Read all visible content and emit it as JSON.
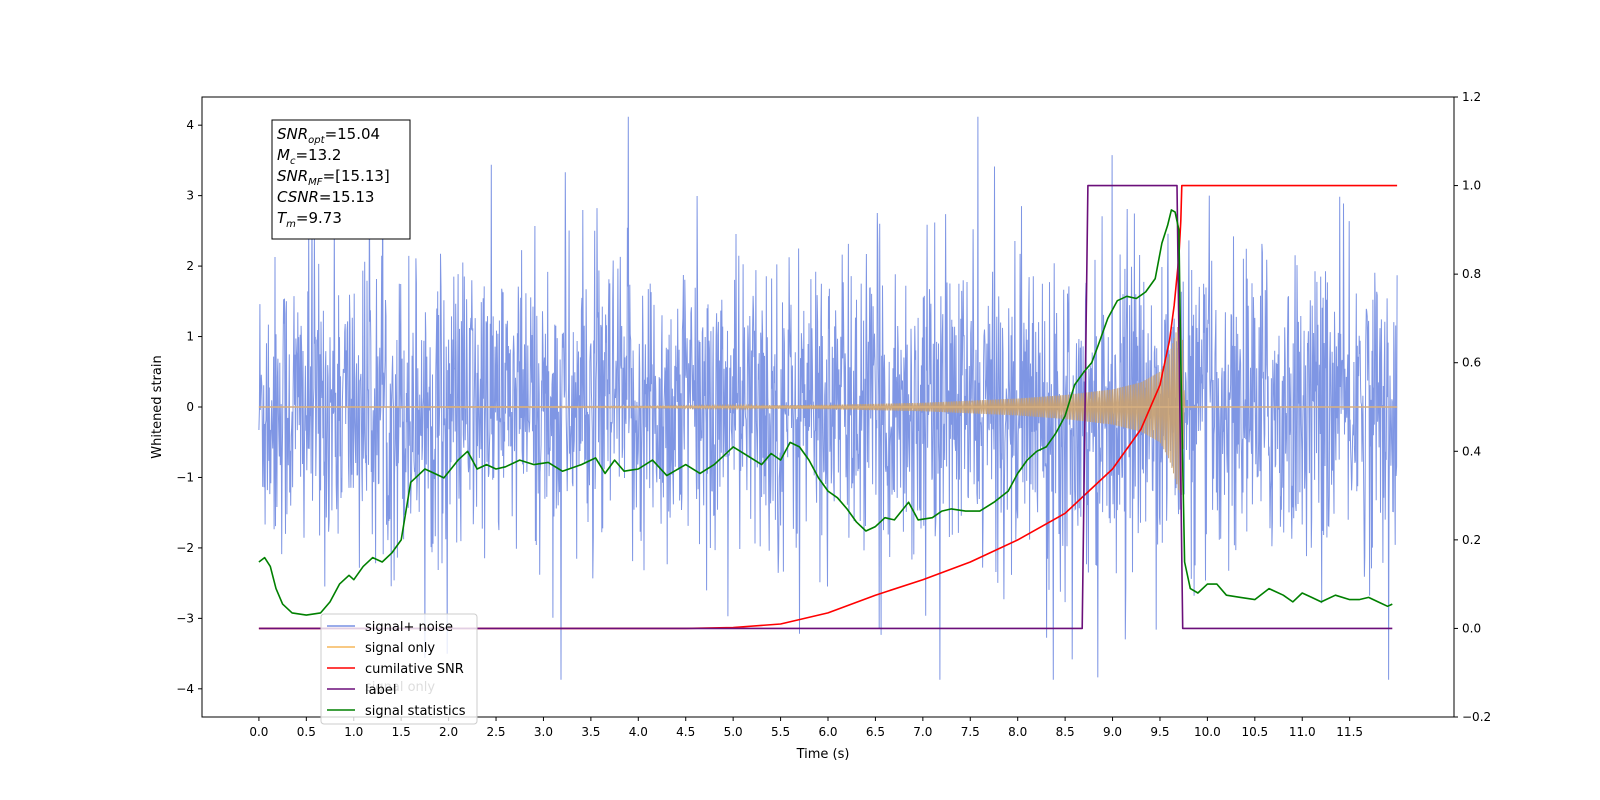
{
  "chart_data": {
    "type": "line",
    "xlabel": "Time (s)",
    "ylabel_left": "Whitened strain",
    "ylabel_right": "",
    "x_range": [
      -0.6,
      12.6
    ],
    "ylim_left": [
      -4.4,
      4.4
    ],
    "ylim_right": [
      -0.2,
      1.2
    ],
    "x_ticks": [
      0.0,
      0.5,
      1.0,
      1.5,
      2.0,
      2.5,
      3.0,
      3.5,
      4.0,
      4.5,
      5.0,
      5.5,
      6.0,
      6.5,
      7.0,
      7.5,
      8.0,
      8.5,
      9.0,
      9.5,
      10.0,
      10.5,
      11.0,
      11.5
    ],
    "x_tick_labels": [
      "0.0",
      "0.5",
      "1.0",
      "1.5",
      "2.0",
      "2.5",
      "3.0",
      "3.5",
      "4.0",
      "4.5",
      "5.0",
      "5.5",
      "6.0",
      "6.5",
      "7.0",
      "7.5",
      "8.0",
      "8.5",
      "9.0",
      "9.5",
      "10.0",
      "10.5",
      "11.0",
      "11.5"
    ],
    "y_ticks_left": [
      -4,
      -3,
      -2,
      -1,
      0,
      1,
      2,
      3,
      4
    ],
    "y_ticks_right": [
      -0.2,
      0.0,
      0.2,
      0.4,
      0.6,
      0.8,
      1.0,
      1.2
    ],
    "y_tick_labels_right": [
      "−0.2",
      "0.0",
      "0.2",
      "0.4",
      "0.6",
      "0.8",
      "1.0",
      "1.2"
    ],
    "annotation": {
      "lines": [
        {
          "sym": "SNR",
          "sub": "opt",
          "val": "=15.04"
        },
        {
          "sym": "M",
          "sub": "c",
          "val": "=13.2"
        },
        {
          "sym": "SNR",
          "sub": "MF",
          "val": "=[15.13]"
        },
        {
          "sym": "CSNR",
          "sub": "",
          "val": "=15.13"
        },
        {
          "sym": "T",
          "sub": "m",
          "val": "=9.73"
        }
      ]
    },
    "legend": {
      "placement": "lower-left",
      "entries": [
        {
          "label": "signal+ noise",
          "color": "#7890e3"
        },
        {
          "label": "signal only",
          "color": "#f5b75a"
        },
        {
          "label": "cumilative SNR",
          "color": "#ff0000"
        },
        {
          "label": "label",
          "color": "#6b0f7a"
        },
        {
          "label": "signal statistics",
          "color": "#008000"
        }
      ],
      "hidden_text": "signal only"
    },
    "series": [
      {
        "name": "signal+ noise",
        "axis": "left",
        "color": "#7890e3",
        "description_values": {
          "t_start": 0.0,
          "t_end": 12.0,
          "typical_range": [
            -2.6,
            2.6
          ],
          "max": 4.12,
          "min": -3.87
        }
      },
      {
        "name": "signal only",
        "axis": "left",
        "color": "#f5b75a",
        "merger_time": 9.73,
        "envelope": {
          "t": [
            0.0,
            4.0,
            6.0,
            7.0,
            8.0,
            8.5,
            9.0,
            9.3,
            9.5,
            9.6,
            9.7,
            9.73,
            9.76,
            12.0
          ],
          "amp": [
            0.0,
            0.01,
            0.03,
            0.06,
            0.12,
            0.17,
            0.25,
            0.35,
            0.5,
            0.75,
            1.2,
            1.25,
            0.0,
            0.0
          ]
        }
      },
      {
        "name": "cumilative SNR",
        "axis": "right",
        "color": "#ff0000",
        "t": [
          0.0,
          4.5,
          5.0,
          5.5,
          6.0,
          6.5,
          7.0,
          7.5,
          8.0,
          8.5,
          9.0,
          9.3,
          9.5,
          9.6,
          9.65,
          9.7,
          9.72,
          9.73,
          12.0
        ],
        "values": [
          0.0,
          0.0,
          0.002,
          0.01,
          0.035,
          0.075,
          0.11,
          0.15,
          0.2,
          0.26,
          0.36,
          0.45,
          0.55,
          0.65,
          0.73,
          0.84,
          0.92,
          1.0,
          1.0
        ]
      },
      {
        "name": "label",
        "axis": "right",
        "color": "#6b0f7a",
        "t": [
          0.0,
          8.68,
          8.74,
          9.68,
          9.74,
          11.95
        ],
        "values": [
          0.0,
          0.0,
          1.0,
          1.0,
          0.0,
          0.0
        ]
      },
      {
        "name": "signal statistics",
        "axis": "right",
        "color": "#008000",
        "t": [
          0.0,
          0.06,
          0.12,
          0.18,
          0.25,
          0.35,
          0.5,
          0.65,
          0.75,
          0.85,
          0.95,
          1.0,
          1.1,
          1.2,
          1.3,
          1.4,
          1.5,
          1.6,
          1.65,
          1.75,
          1.85,
          1.95,
          2.1,
          2.2,
          2.3,
          2.4,
          2.5,
          2.6,
          2.75,
          2.9,
          3.05,
          3.2,
          3.4,
          3.55,
          3.65,
          3.75,
          3.85,
          4.0,
          4.15,
          4.3,
          4.5,
          4.65,
          4.8,
          5.0,
          5.15,
          5.3,
          5.4,
          5.5,
          5.6,
          5.7,
          5.8,
          5.9,
          6.0,
          6.1,
          6.2,
          6.3,
          6.4,
          6.5,
          6.6,
          6.7,
          6.85,
          6.95,
          7.1,
          7.2,
          7.3,
          7.45,
          7.6,
          7.75,
          7.9,
          8.0,
          8.1,
          8.2,
          8.3,
          8.4,
          8.5,
          8.6,
          8.7,
          8.78,
          8.85,
          8.95,
          9.05,
          9.15,
          9.25,
          9.35,
          9.45,
          9.52,
          9.58,
          9.62,
          9.66,
          9.7,
          9.72,
          9.76,
          9.82,
          9.9,
          10.0,
          10.1,
          10.2,
          10.35,
          10.5,
          10.65,
          10.8,
          10.9,
          11.0,
          11.1,
          11.2,
          11.35,
          11.5,
          11.6,
          11.7,
          11.8,
          11.9,
          11.95
        ],
        "values": [
          0.15,
          0.16,
          0.14,
          0.09,
          0.055,
          0.035,
          0.03,
          0.035,
          0.06,
          0.1,
          0.12,
          0.11,
          0.14,
          0.16,
          0.15,
          0.17,
          0.2,
          0.33,
          0.34,
          0.36,
          0.35,
          0.34,
          0.38,
          0.4,
          0.36,
          0.37,
          0.36,
          0.365,
          0.38,
          0.37,
          0.375,
          0.355,
          0.37,
          0.385,
          0.35,
          0.38,
          0.355,
          0.36,
          0.38,
          0.345,
          0.37,
          0.35,
          0.37,
          0.41,
          0.39,
          0.37,
          0.395,
          0.38,
          0.42,
          0.41,
          0.38,
          0.34,
          0.31,
          0.295,
          0.27,
          0.24,
          0.22,
          0.23,
          0.25,
          0.245,
          0.285,
          0.245,
          0.25,
          0.265,
          0.27,
          0.265,
          0.265,
          0.285,
          0.31,
          0.35,
          0.38,
          0.4,
          0.41,
          0.44,
          0.48,
          0.55,
          0.58,
          0.6,
          0.64,
          0.7,
          0.74,
          0.75,
          0.745,
          0.76,
          0.79,
          0.87,
          0.91,
          0.945,
          0.94,
          0.9,
          0.6,
          0.15,
          0.09,
          0.08,
          0.1,
          0.1,
          0.075,
          0.07,
          0.065,
          0.09,
          0.075,
          0.06,
          0.08,
          0.07,
          0.06,
          0.075,
          0.065,
          0.065,
          0.07,
          0.06,
          0.05,
          0.055
        ]
      }
    ]
  }
}
